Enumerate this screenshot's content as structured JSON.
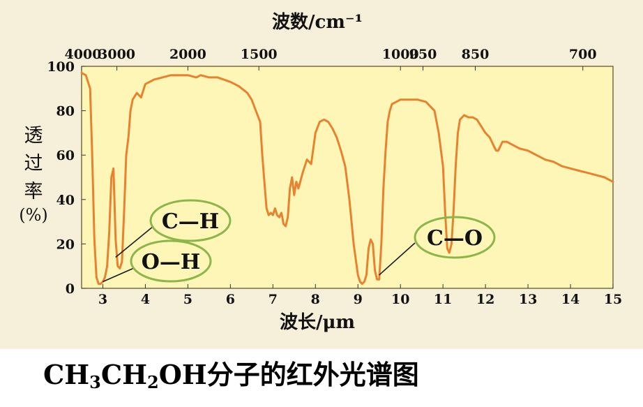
{
  "chart_data": {
    "type": "line",
    "title": "CH₃CH₂OH分子的红外光谱图",
    "caption": {
      "parts": [
        "CH",
        "3",
        "CH",
        "2",
        "OH分子的红外光谱图"
      ]
    },
    "xlabel_bottom": "波长/μm",
    "xlabel_top": "波数/cm⁻¹",
    "ylabel_chars": [
      "透",
      "过",
      "率",
      "(%)"
    ],
    "xlim": [
      2.5,
      15
    ],
    "ylim": [
      0,
      100
    ],
    "x_ticks": [
      3,
      4,
      5,
      6,
      7,
      8,
      9,
      10,
      11,
      12,
      13,
      14,
      15
    ],
    "y_ticks": [
      0,
      20,
      40,
      60,
      80,
      100
    ],
    "top_ticks": [
      {
        "label": "4000",
        "x": 2.5
      },
      {
        "label": "3000",
        "x": 3.33
      },
      {
        "label": "2000",
        "x": 5.0
      },
      {
        "label": "1500",
        "x": 6.67
      },
      {
        "label": "1000",
        "x": 10.0
      },
      {
        "label": "950",
        "x": 10.53
      },
      {
        "label": "850",
        "x": 11.76
      },
      {
        "label": "700",
        "x": 14.29
      }
    ],
    "annotations": [
      {
        "text": "C—H",
        "x": 3.3,
        "y": 14
      },
      {
        "text": "O—H",
        "x": 3.0,
        "y": 3
      },
      {
        "text": "C—O",
        "x": 9.5,
        "y": 6
      }
    ],
    "grid": false,
    "colors": {
      "background": "#fdf6b6",
      "line": "#e8822e",
      "ellipse": "#8db64a"
    },
    "series": [
      {
        "x": [
          2.5,
          2.6,
          2.7,
          2.75,
          2.8,
          2.85,
          2.9,
          2.95,
          3.0,
          3.05,
          3.1,
          3.15,
          3.2,
          3.25,
          3.3,
          3.35,
          3.4,
          3.45,
          3.5,
          3.55,
          3.6,
          3.65,
          3.7,
          3.8,
          3.9,
          4.0,
          4.1,
          4.2,
          4.4,
          4.6,
          4.8,
          5.0,
          5.2,
          5.3,
          5.5,
          5.7,
          6.0,
          6.2,
          6.4,
          6.5,
          6.6,
          6.7,
          6.75,
          6.8,
          6.85,
          6.9,
          6.95,
          7.0,
          7.05,
          7.1,
          7.15,
          7.2,
          7.25,
          7.3,
          7.35,
          7.4,
          7.45,
          7.5,
          7.55,
          7.6,
          7.7,
          7.8,
          7.9,
          8.0,
          8.1,
          8.2,
          8.3,
          8.4,
          8.5,
          8.6,
          8.7,
          8.8,
          8.9,
          9.0,
          9.05,
          9.1,
          9.15,
          9.2,
          9.25,
          9.3,
          9.35,
          9.4,
          9.45,
          9.5,
          9.55,
          9.6,
          9.65,
          9.7,
          9.75,
          9.8,
          9.9,
          10.0,
          10.2,
          10.4,
          10.6,
          10.8,
          10.9,
          11.0,
          11.05,
          11.1,
          11.15,
          11.2,
          11.25,
          11.3,
          11.35,
          11.4,
          11.5,
          11.6,
          11.7,
          11.8,
          11.9,
          12.0,
          12.1,
          12.2,
          12.25,
          12.3,
          12.4,
          12.5,
          12.6,
          12.8,
          13.0,
          13.2,
          13.4,
          13.6,
          13.8,
          14.0,
          14.2,
          14.4,
          14.6,
          14.8,
          15.0
        ],
        "y": [
          97,
          96,
          90,
          60,
          22,
          5,
          2,
          2,
          3,
          5,
          10,
          25,
          50,
          54,
          22,
          10,
          9,
          12,
          35,
          60,
          68,
          80,
          85,
          88,
          86,
          92,
          93,
          94,
          95,
          96,
          96,
          96,
          95,
          96,
          95,
          95,
          93,
          91,
          88,
          85,
          80,
          75,
          60,
          48,
          36,
          33,
          34,
          33,
          36,
          33,
          32,
          34,
          29,
          28,
          32,
          45,
          50,
          42,
          48,
          45,
          52,
          58,
          56,
          70,
          75,
          76,
          75,
          72,
          68,
          62,
          55,
          40,
          20,
          6,
          3,
          2,
          3,
          6,
          18,
          22,
          20,
          8,
          4,
          4,
          20,
          45,
          62,
          75,
          80,
          83,
          84,
          85,
          85,
          85,
          84,
          80,
          70,
          55,
          35,
          18,
          16,
          20,
          35,
          55,
          70,
          76,
          78,
          77,
          77,
          76,
          73,
          70,
          68,
          64,
          62,
          62,
          66,
          66,
          65,
          63,
          62,
          60,
          58,
          57,
          55,
          54,
          53,
          52,
          51,
          50,
          48
        ]
      }
    ]
  }
}
